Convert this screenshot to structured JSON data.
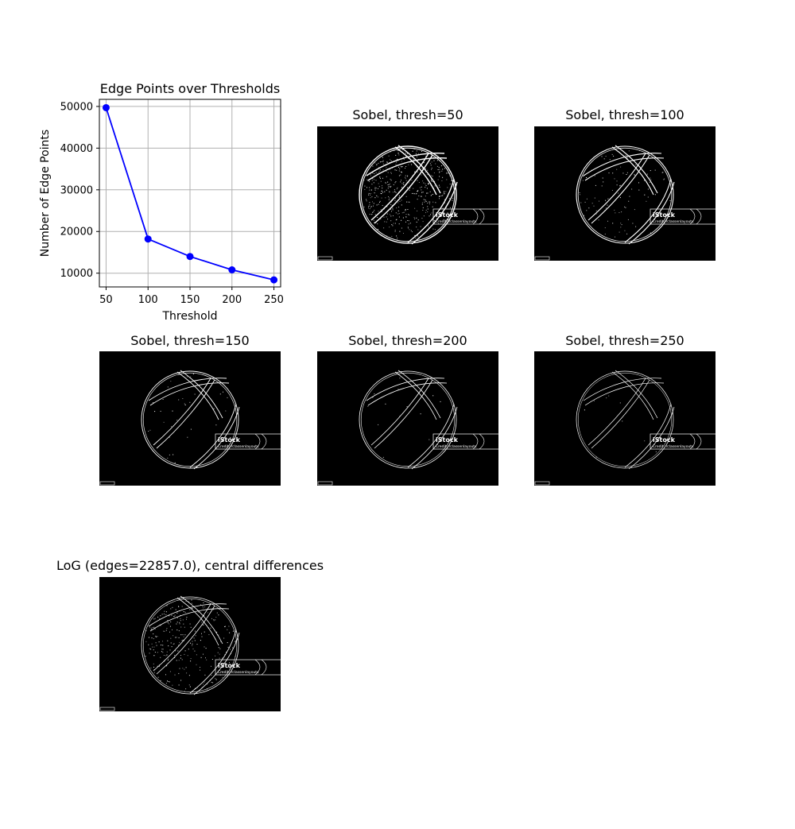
{
  "chart_data": {
    "type": "line",
    "title": "Edge Points over Thresholds",
    "xlabel": "Threshold",
    "ylabel": "Number of Edge Points",
    "x": [
      50,
      100,
      150,
      200,
      250
    ],
    "series": [
      {
        "values": [
          49700,
          18200,
          14000,
          10800,
          8400
        ],
        "color": "#0000ff"
      }
    ],
    "xlim": [
      42,
      258
    ],
    "ylim": [
      6700,
      51700
    ],
    "xticks": [
      50,
      100,
      150,
      200,
      250
    ],
    "yticks": [
      10000,
      20000,
      30000,
      40000,
      50000
    ],
    "grid": true,
    "marker": "circle"
  },
  "panels": [
    {
      "title": "Sobel, thresh=50"
    },
    {
      "title": "Sobel, thresh=100"
    },
    {
      "title": "Sobel, thresh=150"
    },
    {
      "title": "Sobel, thresh=200"
    },
    {
      "title": "Sobel, thresh=250"
    },
    {
      "title": "LoG (edges=22857.0), central differences"
    }
  ],
  "watermark": {
    "brand": "iStock",
    "credit": "Credit: rclassenlayouts"
  },
  "colors": {
    "image_background": "#000000",
    "edges": "#ffffff",
    "line": "#0000ff",
    "grid": "#b0b0b0"
  }
}
